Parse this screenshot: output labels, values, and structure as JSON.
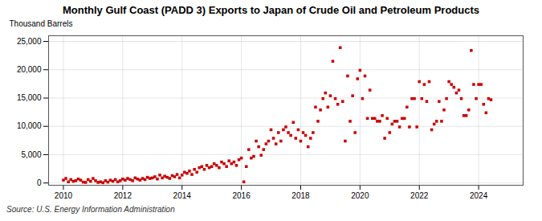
{
  "chart_data": {
    "type": "scatter",
    "title": "Monthly Gulf Coast (PADD 3) Exports to Japan of Crude Oil and Petroleum Products",
    "ylabel": "Thousand Barrels",
    "source": "Source: U.S. Energy Information Administration",
    "color": "#cc0000",
    "marker": "square",
    "grid": true,
    "xlim": [
      2009.5,
      2025.5
    ],
    "ylim": [
      -400,
      26000
    ],
    "xticks": [
      2010,
      2012,
      2014,
      2016,
      2018,
      2020,
      2022,
      2024
    ],
    "yticks": [
      0,
      {
        "value": 5000,
        "label": "5,000"
      },
      {
        "value": 10000,
        "label": "10,000"
      },
      {
        "value": 15000,
        "label": "15,000"
      },
      {
        "value": 20000,
        "label": "20,000"
      },
      {
        "value": 25000,
        "label": "25,000"
      }
    ],
    "x": [
      2010.0,
      2010.083,
      2010.167,
      2010.25,
      2010.333,
      2010.417,
      2010.5,
      2010.583,
      2010.667,
      2010.75,
      2010.833,
      2010.917,
      2011.0,
      2011.083,
      2011.167,
      2011.25,
      2011.333,
      2011.417,
      2011.5,
      2011.583,
      2011.667,
      2011.75,
      2011.833,
      2011.917,
      2012.0,
      2012.083,
      2012.167,
      2012.25,
      2012.333,
      2012.417,
      2012.5,
      2012.583,
      2012.667,
      2012.75,
      2012.833,
      2012.917,
      2013.0,
      2013.083,
      2013.167,
      2013.25,
      2013.333,
      2013.417,
      2013.5,
      2013.583,
      2013.667,
      2013.75,
      2013.833,
      2013.917,
      2014.0,
      2014.083,
      2014.167,
      2014.25,
      2014.333,
      2014.417,
      2014.5,
      2014.583,
      2014.667,
      2014.75,
      2014.833,
      2014.917,
      2015.0,
      2015.083,
      2015.167,
      2015.25,
      2015.333,
      2015.417,
      2015.5,
      2015.583,
      2015.667,
      2015.75,
      2015.833,
      2015.917,
      2016.0,
      2016.083,
      2016.167,
      2016.25,
      2016.333,
      2016.417,
      2016.5,
      2016.583,
      2016.667,
      2016.75,
      2016.833,
      2016.917,
      2017.0,
      2017.083,
      2017.167,
      2017.25,
      2017.333,
      2017.417,
      2017.5,
      2017.583,
      2017.667,
      2017.75,
      2017.833,
      2017.917,
      2018.0,
      2018.083,
      2018.167,
      2018.25,
      2018.333,
      2018.417,
      2018.5,
      2018.583,
      2018.667,
      2018.75,
      2018.833,
      2018.917,
      2019.0,
      2019.083,
      2019.167,
      2019.25,
      2019.333,
      2019.417,
      2019.5,
      2019.583,
      2019.667,
      2019.75,
      2019.833,
      2019.917,
      2020.0,
      2020.083,
      2020.167,
      2020.25,
      2020.333,
      2020.417,
      2020.5,
      2020.583,
      2020.667,
      2020.75,
      2020.833,
      2020.917,
      2021.0,
      2021.083,
      2021.167,
      2021.25,
      2021.333,
      2021.417,
      2021.5,
      2021.583,
      2021.667,
      2021.75,
      2021.833,
      2021.917,
      2022.0,
      2022.083,
      2022.167,
      2022.25,
      2022.333,
      2022.417,
      2022.5,
      2022.583,
      2022.667,
      2022.75,
      2022.833,
      2022.917,
      2023.0,
      2023.083,
      2023.167,
      2023.25,
      2023.333,
      2023.417,
      2023.5,
      2023.583,
      2023.667,
      2023.75,
      2023.833,
      2023.917,
      2024.0,
      2024.083,
      2024.167,
      2024.25,
      2024.333,
      2024.417
    ],
    "values": [
      500,
      800,
      200,
      600,
      300,
      400,
      700,
      500,
      150,
      100,
      600,
      300,
      800,
      400,
      100,
      200,
      50,
      400,
      150,
      500,
      300,
      600,
      200,
      400,
      700,
      500,
      800,
      600,
      400,
      900,
      700,
      500,
      800,
      600,
      1000,
      800,
      900,
      1100,
      700,
      1400,
      900,
      1200,
      1000,
      800,
      1300,
      1100,
      1500,
      900,
      1400,
      1900,
      1700,
      2100,
      1500,
      2400,
      1900,
      2700,
      2900,
      2400,
      3100,
      2700,
      2900,
      3400,
      3100,
      2700,
      3700,
      3400,
      2900,
      3900,
      3400,
      3700,
      3100,
      4100,
      4400,
      200,
      2900,
      5900,
      4400,
      4700,
      7400,
      6400,
      4900,
      5900,
      6900,
      7400,
      9400,
      7900,
      6900,
      8900,
      7400,
      9400,
      9900,
      8900,
      8400,
      10700,
      7900,
      9400,
      7400,
      8900,
      8400,
      6400,
      7900,
      8900,
      13400,
      10900,
      12900,
      14900,
      15900,
      13400,
      15400,
      21500,
      14900,
      13900,
      23900,
      14400,
      7400,
      18900,
      10900,
      15400,
      8900,
      18400,
      19900,
      14900,
      18900,
      11400,
      16400,
      11400,
      11400,
      10900,
      10900,
      11900,
      7900,
      11400,
      8900,
      10400,
      10900,
      10900,
      9900,
      11400,
      11400,
      13400,
      9900,
      14900,
      14900,
      9900,
      17900,
      14900,
      17400,
      14400,
      17900,
      9400,
      10400,
      10900,
      14400,
      10900,
      12900,
      14900,
      17900,
      17400,
      16900,
      15900,
      16400,
      14900,
      11900,
      11900,
      12900,
      23400,
      17400,
      14900,
      17400,
      17400,
      13900,
      12400,
      14900,
      14700
    ]
  }
}
